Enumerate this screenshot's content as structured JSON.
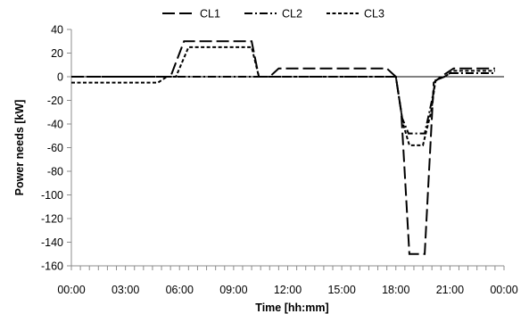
{
  "chart_data": {
    "type": "line",
    "title": "",
    "xlabel": "Time [hh:mm]",
    "ylabel": "Power needs [kW]",
    "ylim": [
      -160,
      40
    ],
    "y_ticks": [
      40,
      20,
      0,
      -20,
      -40,
      -60,
      -80,
      -100,
      -120,
      -140,
      -160
    ],
    "y_tick_labels": [
      "40",
      "20",
      "0",
      "-20",
      "-40",
      "-60",
      "-80",
      "-100",
      "-120",
      "-140",
      "-160"
    ],
    "xlim": [
      0,
      24
    ],
    "x_ticks": [
      0,
      3,
      6,
      9,
      12,
      15,
      18,
      21,
      24
    ],
    "x_tick_labels": [
      "00:00",
      "03:00",
      "06:00",
      "09:00",
      "12:00",
      "15:00",
      "18:00",
      "21:00",
      "00:00"
    ],
    "grid": false,
    "legend": "top",
    "series": [
      {
        "name": "CL1",
        "dash": "long-dash",
        "points": [
          [
            0,
            0
          ],
          [
            5.5,
            0
          ],
          [
            6.25,
            30
          ],
          [
            10,
            30
          ],
          [
            10.4,
            0
          ],
          [
            11,
            0
          ],
          [
            11.5,
            7
          ],
          [
            17.5,
            7
          ],
          [
            18,
            0
          ],
          [
            18.3,
            -30
          ],
          [
            18.75,
            -150
          ],
          [
            19.6,
            -150
          ],
          [
            20.1,
            -5
          ],
          [
            20.5,
            0
          ],
          [
            21.2,
            7
          ],
          [
            23.5,
            7
          ]
        ]
      },
      {
        "name": "CL2",
        "dash": "dash-dot",
        "points": [
          [
            0,
            0
          ],
          [
            18,
            0
          ],
          [
            18.35,
            -35
          ],
          [
            18.7,
            -48
          ],
          [
            19.6,
            -48
          ],
          [
            20,
            -20
          ],
          [
            20.2,
            -3
          ],
          [
            20.7,
            0
          ],
          [
            21,
            3
          ],
          [
            23.5,
            3
          ]
        ]
      },
      {
        "name": "CL3",
        "dash": "short-dash",
        "points": [
          [
            0,
            -5
          ],
          [
            4.8,
            -5
          ],
          [
            5.3,
            0
          ],
          [
            5.8,
            0
          ],
          [
            6.5,
            25
          ],
          [
            10,
            25
          ],
          [
            10.4,
            0
          ],
          [
            18,
            0
          ],
          [
            18.4,
            -40
          ],
          [
            18.75,
            -58
          ],
          [
            19.5,
            -58
          ],
          [
            19.95,
            -30
          ],
          [
            20.2,
            -3
          ],
          [
            20.7,
            0
          ],
          [
            21.2,
            5
          ],
          [
            23.5,
            5
          ]
        ]
      }
    ]
  }
}
